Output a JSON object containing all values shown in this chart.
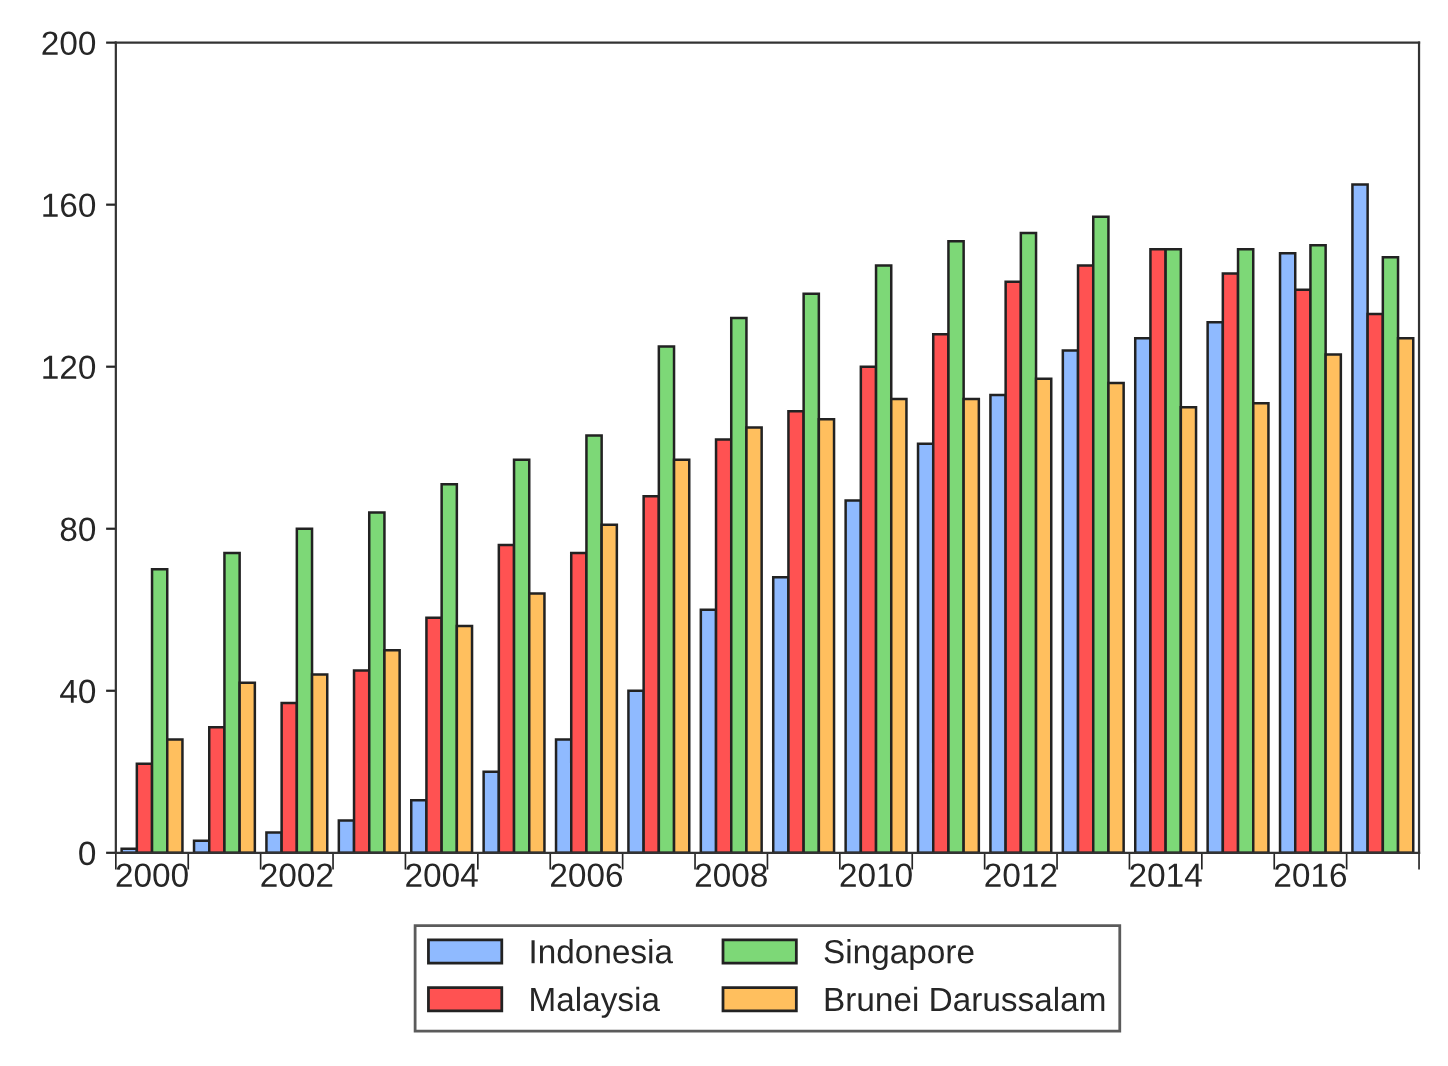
{
  "chart_data": {
    "type": "bar",
    "categories": [
      "2000",
      null,
      "2002",
      null,
      "2004",
      null,
      "2006",
      null,
      "2008",
      null,
      "2010",
      null,
      "2012",
      null,
      "2014",
      null,
      "2016",
      null
    ],
    "series": [
      {
        "name": "Indonesia",
        "color": "#8fbaff",
        "values": [
          1,
          3,
          5,
          8,
          13,
          20,
          28,
          40,
          60,
          68,
          87,
          101,
          113,
          124,
          127,
          131,
          148,
          165
        ]
      },
      {
        "name": "Malaysia",
        "color": "#ff5252",
        "values": [
          22,
          31,
          37,
          45,
          58,
          76,
          74,
          88,
          102,
          109,
          120,
          128,
          141,
          145,
          149,
          143,
          139,
          133
        ]
      },
      {
        "name": "Singapore",
        "color": "#7dd877",
        "values": [
          70,
          74,
          80,
          84,
          91,
          97,
          103,
          125,
          132,
          138,
          145,
          151,
          153,
          157,
          149,
          149,
          150,
          147
        ]
      },
      {
        "name": "Brunei Darussalam",
        "color": "#ffbf5e",
        "values": [
          28,
          42,
          44,
          50,
          56,
          64,
          81,
          97,
          105,
          107,
          112,
          112,
          117,
          116,
          110,
          111,
          123,
          127
        ]
      }
    ],
    "ylim": [
      0,
      200
    ],
    "yticks": [
      0,
      40,
      80,
      120,
      160,
      200
    ],
    "grid": false,
    "legend": "bottom"
  }
}
